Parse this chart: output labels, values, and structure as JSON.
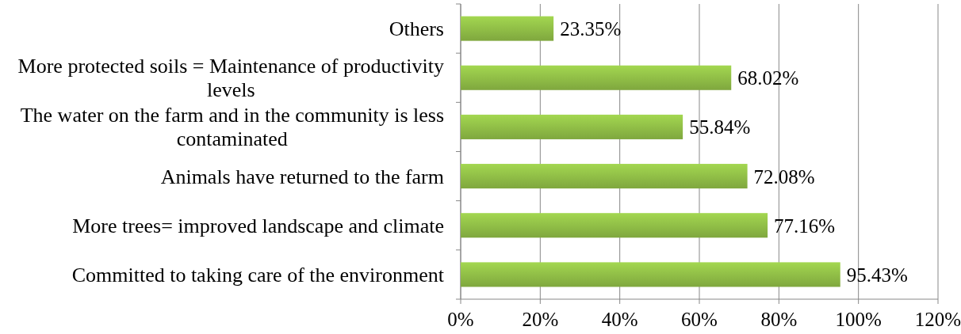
{
  "chart_data": {
    "type": "bar",
    "orientation": "horizontal",
    "categories": [
      "Others",
      "More protected soils = Maintenance of productivity levels",
      "The water on the farm and in the community is less contaminated",
      "Animals have returned to the farm",
      "More trees= improved landscape and climate",
      "Committed to taking care of the environment"
    ],
    "values": [
      23.35,
      68.02,
      55.84,
      72.08,
      77.16,
      95.43
    ],
    "value_labels": [
      "23.35%",
      "68.02%",
      "55.84%",
      "72.08%",
      "77.16%",
      "95.43%"
    ],
    "color": "#8dba45",
    "xlim": [
      0,
      120
    ],
    "xticks": [
      {
        "value": 0,
        "label": "0%"
      },
      {
        "value": 20,
        "label": "20%"
      },
      {
        "value": 40,
        "label": "40%"
      },
      {
        "value": 60,
        "label": "60%"
      },
      {
        "value": 80,
        "label": "80%"
      },
      {
        "value": 100,
        "label": "100%"
      },
      {
        "value": 120,
        "label": "120%"
      }
    ],
    "grid": "x"
  }
}
